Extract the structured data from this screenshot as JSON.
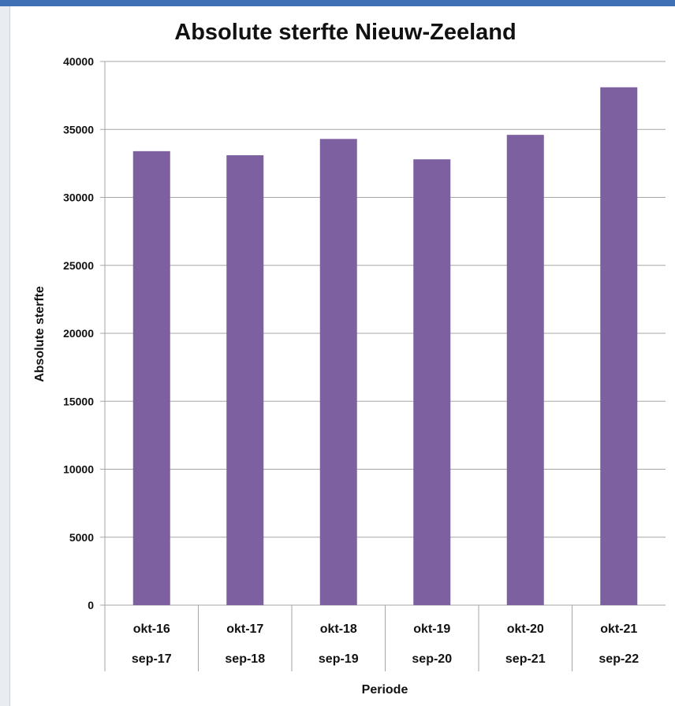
{
  "chart_data": {
    "type": "bar",
    "title": "Absolute sterfte Nieuw-Zeeland",
    "xlabel": "Periode",
    "ylabel": "Absolute sterfte",
    "ylim": [
      0,
      40000
    ],
    "yticks": [
      0,
      5000,
      10000,
      15000,
      20000,
      25000,
      30000,
      35000,
      40000
    ],
    "grid": true,
    "legend": "none",
    "categories": [
      {
        "line1": "okt-16",
        "line2": "sep-17"
      },
      {
        "line1": "okt-17",
        "line2": "sep-18"
      },
      {
        "line1": "okt-18",
        "line2": "sep-19"
      },
      {
        "line1": "okt-19",
        "line2": "sep-20"
      },
      {
        "line1": "okt-20",
        "line2": "sep-21"
      },
      {
        "line1": "okt-21",
        "line2": "sep-22"
      }
    ],
    "values": [
      33400,
      33100,
      34300,
      32800,
      34600,
      38100
    ],
    "bar_color": "#7d60a0",
    "grid_color": "#a6a6a6"
  }
}
